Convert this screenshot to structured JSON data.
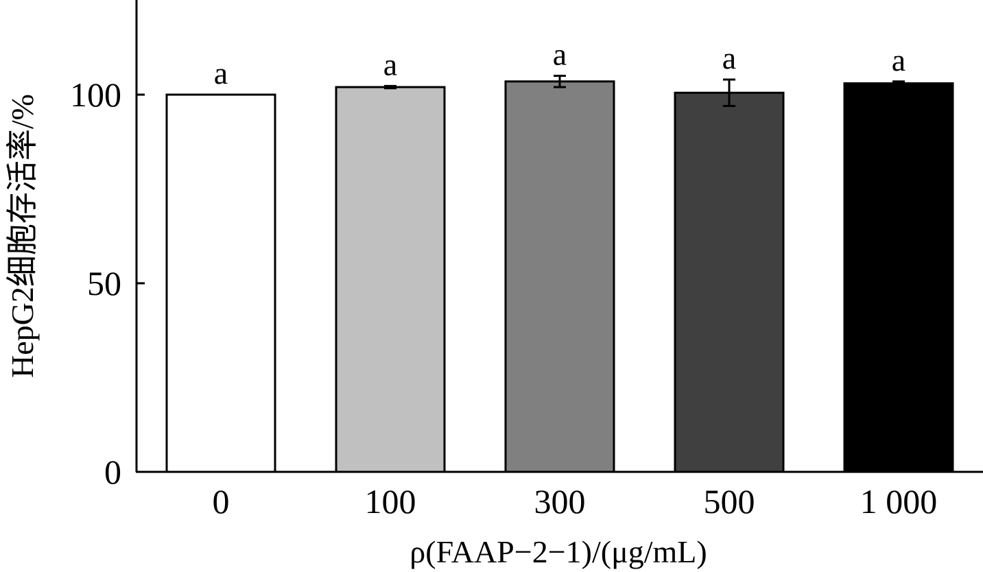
{
  "chart_data": {
    "type": "bar",
    "categories": [
      "0",
      "100",
      "300",
      "500",
      "1 000"
    ],
    "values": [
      100,
      102,
      103.5,
      100.5,
      103
    ],
    "errors": [
      0,
      0.3,
      1.5,
      3.5,
      0.5
    ],
    "significance": [
      "a",
      "a",
      "a",
      "a",
      "a"
    ],
    "bar_colors": [
      "#ffffff",
      "#c0c0c0",
      "#808080",
      "#404040",
      "#000000"
    ],
    "xlabel": "ρ(FAAP−2−1)/(μg/mL)",
    "ylabel": "HepG2细胞存活率/%",
    "ylim": [
      0,
      125
    ],
    "yticks": [
      0,
      50,
      100
    ],
    "ytick_labels": [
      "0",
      "50",
      "100"
    ],
    "grid": false,
    "legend": "none"
  }
}
